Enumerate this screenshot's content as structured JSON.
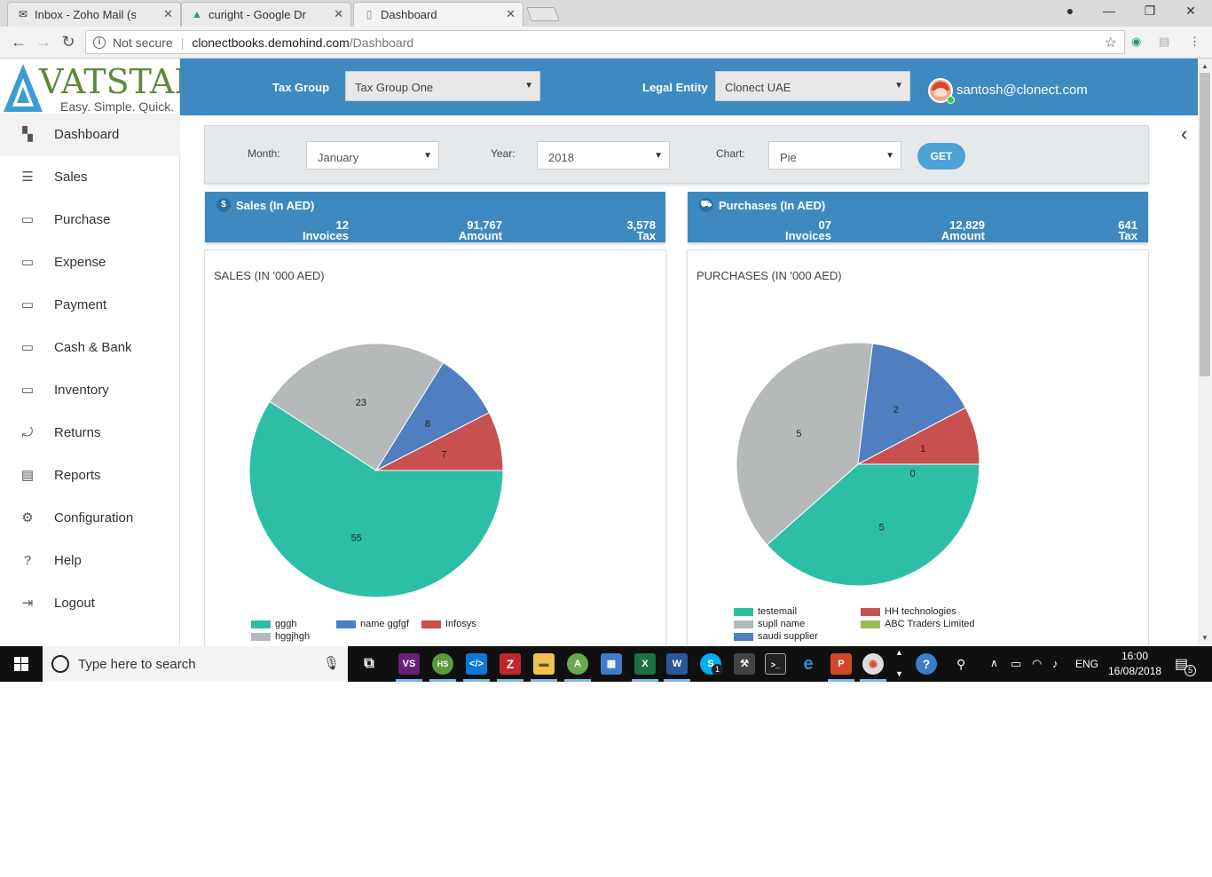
{
  "browser": {
    "tabs": [
      {
        "title": "Inbox - Zoho Mail (santos",
        "active": false
      },
      {
        "title": "curight - Google Drive",
        "active": false
      },
      {
        "title": "Dashboard",
        "active": true
      }
    ],
    "security": "Not secure",
    "url_host": "clonectbooks.demohind.com",
    "url_path": "/Dashboard"
  },
  "logo": {
    "wordmark": "VATSTAR",
    "tagline": "Easy. Simple. Quick."
  },
  "sidebar": {
    "items": [
      {
        "label": "Dashboard",
        "icon": "dashboard-icon",
        "active": true
      },
      {
        "label": "Sales",
        "icon": "sales-icon"
      },
      {
        "label": "Purchase",
        "icon": "purchase-icon"
      },
      {
        "label": "Expense",
        "icon": "expense-icon"
      },
      {
        "label": "Payment",
        "icon": "payment-icon"
      },
      {
        "label": "Cash & Bank",
        "icon": "cash-bank-icon"
      },
      {
        "label": "Inventory",
        "icon": "inventory-icon"
      },
      {
        "label": "Returns",
        "icon": "returns-icon"
      },
      {
        "label": "Reports",
        "icon": "reports-icon"
      },
      {
        "label": "Configuration",
        "icon": "gear-icon"
      },
      {
        "label": "Help",
        "icon": "help-icon"
      },
      {
        "label": "Logout",
        "icon": "logout-icon"
      }
    ]
  },
  "header": {
    "tax_group_label": "Tax Group",
    "tax_group_value": "Tax Group One",
    "legal_entity_label": "Legal Entity",
    "legal_entity_value": "Clonect UAE",
    "user_email": "santosh@clonect.com"
  },
  "filters": {
    "month_label": "Month:",
    "month_value": "January",
    "year_label": "Year:",
    "year_value": "2018",
    "chart_label": "Chart:",
    "chart_value": "Pie",
    "get_label": "GET"
  },
  "summary": {
    "sales": {
      "icon_glyph": "$",
      "title": "Sales (In AED)",
      "invoices": "12",
      "invoices_label": "Invoices",
      "amount": "91,767",
      "amount_label": "Amount",
      "tax": "3,578",
      "tax_label": "Tax"
    },
    "purchases": {
      "icon_glyph": "⛟",
      "title": "Purchases (In AED)",
      "invoices": "07",
      "invoices_label": "Invoices",
      "amount": "12,829",
      "amount_label": "Amount",
      "tax": "641",
      "tax_label": "Tax"
    }
  },
  "colors": {
    "primary": "#3e8ac0",
    "teal": "#2dbfa5",
    "grey": "#b5b9b9",
    "blue": "#4f7fc0",
    "red": "#c85150",
    "green": "#9bbb59"
  },
  "chart_data": [
    {
      "type": "pie",
      "title": "SALES (IN '000 AED)",
      "labels": [
        "gggh",
        "hggjhgh",
        "name ggfgf",
        "Infosys"
      ],
      "values": [
        55,
        23,
        8,
        7
      ],
      "colors": [
        "#2dbfa5",
        "#b5b9b9",
        "#4f7fc0",
        "#c85150"
      ]
    },
    {
      "type": "pie",
      "title": "PURCHASES (IN '000 AED)",
      "labels": [
        "testemail",
        "supll name",
        "saudi supplier",
        "HH technologies",
        "ABC Traders Limited"
      ],
      "values": [
        5,
        5,
        2,
        1,
        0
      ],
      "colors": [
        "#2dbfa5",
        "#b5b9b9",
        "#4f7fc0",
        "#c85150",
        "#9bbb59"
      ]
    }
  ],
  "taskbar": {
    "search_placeholder": "Type here to search",
    "time": "16:00",
    "date": "16/08/2018",
    "language": "ENG",
    "notifications": "5",
    "skype_badge": "1"
  }
}
